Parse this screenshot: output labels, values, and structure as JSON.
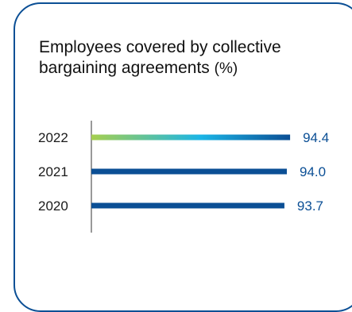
{
  "chart_data": {
    "type": "bar",
    "orientation": "horizontal",
    "title": "Employees covered by collective bargaining agreements",
    "title_unit": "(%)",
    "categories": [
      "2022",
      "2021",
      "2020"
    ],
    "values": [
      94.4,
      94.0,
      93.7
    ],
    "value_labels": [
      "94.4",
      "94.0",
      "93.7"
    ],
    "xlim": [
      70,
      100
    ],
    "grid": false,
    "colors": {
      "bar": "#0b4f95",
      "highlight_gradient": [
        "#a6cf4f",
        "#1bb5e6",
        "#0b4f95"
      ],
      "label": "#0b4f95",
      "axis": "#333333"
    }
  }
}
